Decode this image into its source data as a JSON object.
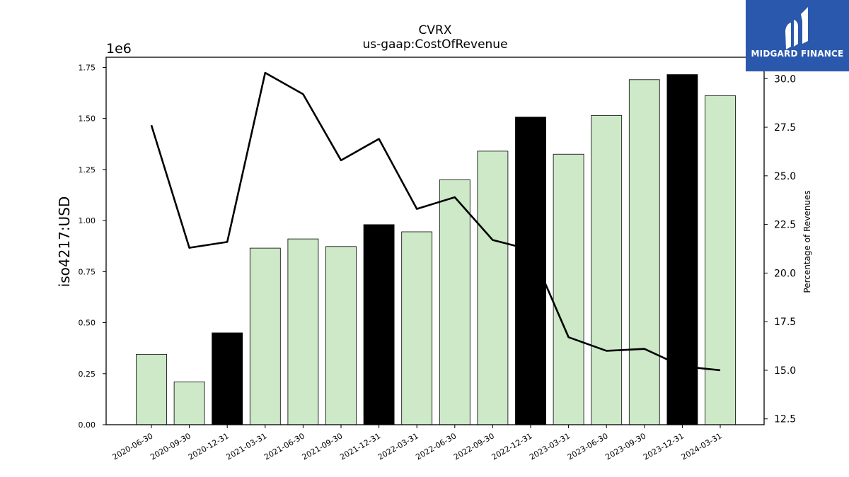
{
  "chart_data": {
    "type": "bar",
    "title": "CVRX",
    "subtitle": "us-gaap:CostOfRevenue",
    "ylabel": "iso4217:USD",
    "y_offset_label": "1e6",
    "y2label": "Percentage of Revenues",
    "ylim": [
      0,
      1.8
    ],
    "y2lim": [
      12.2,
      31.1
    ],
    "y_ticks": [
      "0.00",
      "0.25",
      "0.50",
      "0.75",
      "1.00",
      "1.25",
      "1.50",
      "1.75"
    ],
    "y2_ticks": [
      "12.5",
      "15.0",
      "17.5",
      "20.0",
      "22.5",
      "25.0",
      "27.5",
      "30.0"
    ],
    "categories": [
      "2020-06-30",
      "2020-09-30",
      "2020-12-31",
      "2021-03-31",
      "2021-06-30",
      "2021-09-30",
      "2021-12-31",
      "2022-03-31",
      "2022-06-30",
      "2022-09-30",
      "2022-12-31",
      "2023-03-31",
      "2023-06-30",
      "2023-09-30",
      "2023-12-31",
      "2024-03-31"
    ],
    "series": [
      {
        "values": [
          0.345,
          0.21,
          0.45,
          0.865,
          0.91,
          0.873,
          0.98,
          0.945,
          1.2,
          1.34,
          1.507,
          1.325,
          1.515,
          1.69,
          1.715,
          1.612
        ],
        "year_end": [
          false,
          false,
          true,
          false,
          false,
          false,
          true,
          false,
          false,
          false,
          true,
          false,
          false,
          false,
          true,
          false
        ]
      },
      {
        "axis": "right",
        "type": "line",
        "values": [
          27.6,
          21.3,
          21.6,
          30.3,
          29.2,
          25.8,
          26.9,
          23.3,
          23.9,
          21.7,
          21.2,
          16.7,
          16.0,
          16.1,
          15.2,
          15.0
        ]
      }
    ],
    "colors": {
      "bar": "#cde9c8",
      "bar_year_end": "#000000",
      "line": "#000000"
    },
    "grid": false
  },
  "logo": {
    "text": "MIDGARD FINANCE"
  }
}
